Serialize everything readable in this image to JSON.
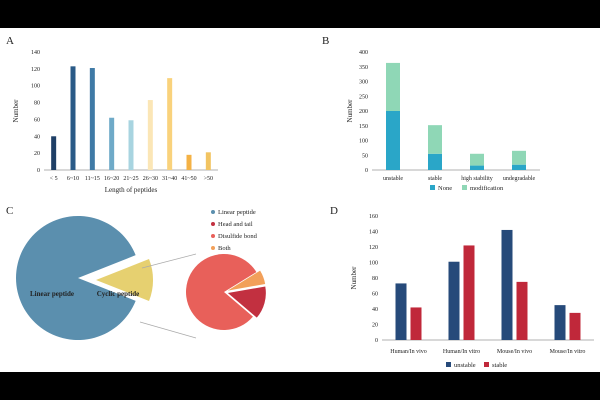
{
  "chart_data": [
    {
      "panel": "A",
      "type": "bar",
      "categories": [
        "< 5",
        "6~10",
        "11~15",
        "16~20",
        "21~25",
        "26~30",
        "31~40",
        "41~50",
        ">50"
      ],
      "values": [
        40,
        123,
        121,
        62,
        59,
        83,
        109,
        18,
        21
      ],
      "colors": [
        "#1f3f66",
        "#2a5a87",
        "#3f7aa6",
        "#6faac8",
        "#a8d4e0",
        "#fbe6b6",
        "#f9d27c",
        "#f4b245",
        "#f2c462"
      ],
      "xlabel": "Length of peptides",
      "ylabel": "Number",
      "ylim": [
        0,
        140
      ],
      "yticks": [
        0,
        20,
        40,
        60,
        80,
        100,
        120,
        140
      ]
    },
    {
      "panel": "B",
      "type": "bar",
      "stacked": true,
      "categories": [
        "unstable",
        "stable",
        "high stability",
        "undegradable"
      ],
      "series": [
        {
          "name": "None",
          "values": [
            200,
            55,
            15,
            18
          ],
          "color": "#2aa6c8"
        },
        {
          "name": "modification",
          "values": [
            163,
            97,
            40,
            47
          ],
          "color": "#8fd7b6"
        }
      ],
      "xlabel": "",
      "ylabel": "Number",
      "ylim": [
        0,
        400
      ],
      "yticks": [
        0,
        50,
        100,
        150,
        200,
        250,
        300,
        350,
        400
      ]
    },
    {
      "panel": "C",
      "type": "pie",
      "main_slices": [
        {
          "label": "Linear peptide",
          "value": 88,
          "color": "#5b8fae"
        },
        {
          "label": "Cyclic peptide",
          "value": 12,
          "color": "#e6d070"
        }
      ],
      "sub_slices": [
        {
          "label": "Linear peptide",
          "value": 0,
          "color": "#5b8fae"
        },
        {
          "label": "Head and tail",
          "value": 14,
          "color": "#c23040"
        },
        {
          "label": "Disulfide bond",
          "value": 80,
          "color": "#e8605a"
        },
        {
          "label": "Both",
          "value": 6,
          "color": "#f2a05a"
        }
      ],
      "legend": [
        "Linear peptide",
        "Head and tail",
        "Disulfide bond",
        "Both"
      ],
      "legend_colors": [
        "#5b8fae",
        "#c23040",
        "#e8605a",
        "#f2a05a"
      ]
    },
    {
      "panel": "D",
      "type": "bar",
      "categories": [
        "Human/In vivo",
        "Human/In vitro",
        "Mouse/In vivo",
        "Mouse/In vitro"
      ],
      "series": [
        {
          "name": "unstable",
          "values": [
            73,
            101,
            142,
            45
          ],
          "color": "#264a7a"
        },
        {
          "name": "stable",
          "values": [
            42,
            122,
            75,
            35
          ],
          "color": "#c0283a"
        }
      ],
      "xlabel": "",
      "ylabel": "Number",
      "ylim": [
        0,
        160
      ],
      "yticks": [
        0,
        20,
        40,
        60,
        80,
        100,
        120,
        140,
        160
      ]
    }
  ]
}
